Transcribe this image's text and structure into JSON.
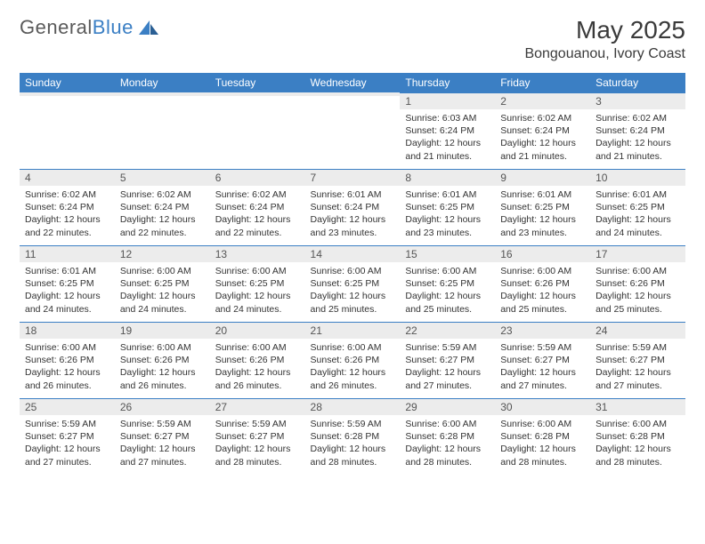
{
  "logo": {
    "text1": "General",
    "text2": "Blue"
  },
  "title": {
    "month": "May 2025",
    "location": "Bongouanou, Ivory Coast"
  },
  "colors": {
    "header_bg": "#3b7fc4",
    "header_text": "#ffffff",
    "daynum_bg": "#ececec",
    "row_border": "#3b7fc4",
    "body_text": "#333333",
    "logo_gray": "#5a5a5a",
    "logo_blue": "#3b7fc4",
    "page_bg": "#ffffff"
  },
  "dayHeaders": [
    "Sunday",
    "Monday",
    "Tuesday",
    "Wednesday",
    "Thursday",
    "Friday",
    "Saturday"
  ],
  "weeks": [
    [
      {
        "n": "",
        "sr": "",
        "ss": "",
        "dl": ""
      },
      {
        "n": "",
        "sr": "",
        "ss": "",
        "dl": ""
      },
      {
        "n": "",
        "sr": "",
        "ss": "",
        "dl": ""
      },
      {
        "n": "",
        "sr": "",
        "ss": "",
        "dl": ""
      },
      {
        "n": "1",
        "sr": "Sunrise: 6:03 AM",
        "ss": "Sunset: 6:24 PM",
        "dl": "Daylight: 12 hours and 21 minutes."
      },
      {
        "n": "2",
        "sr": "Sunrise: 6:02 AM",
        "ss": "Sunset: 6:24 PM",
        "dl": "Daylight: 12 hours and 21 minutes."
      },
      {
        "n": "3",
        "sr": "Sunrise: 6:02 AM",
        "ss": "Sunset: 6:24 PM",
        "dl": "Daylight: 12 hours and 21 minutes."
      }
    ],
    [
      {
        "n": "4",
        "sr": "Sunrise: 6:02 AM",
        "ss": "Sunset: 6:24 PM",
        "dl": "Daylight: 12 hours and 22 minutes."
      },
      {
        "n": "5",
        "sr": "Sunrise: 6:02 AM",
        "ss": "Sunset: 6:24 PM",
        "dl": "Daylight: 12 hours and 22 minutes."
      },
      {
        "n": "6",
        "sr": "Sunrise: 6:02 AM",
        "ss": "Sunset: 6:24 PM",
        "dl": "Daylight: 12 hours and 22 minutes."
      },
      {
        "n": "7",
        "sr": "Sunrise: 6:01 AM",
        "ss": "Sunset: 6:24 PM",
        "dl": "Daylight: 12 hours and 23 minutes."
      },
      {
        "n": "8",
        "sr": "Sunrise: 6:01 AM",
        "ss": "Sunset: 6:25 PM",
        "dl": "Daylight: 12 hours and 23 minutes."
      },
      {
        "n": "9",
        "sr": "Sunrise: 6:01 AM",
        "ss": "Sunset: 6:25 PM",
        "dl": "Daylight: 12 hours and 23 minutes."
      },
      {
        "n": "10",
        "sr": "Sunrise: 6:01 AM",
        "ss": "Sunset: 6:25 PM",
        "dl": "Daylight: 12 hours and 24 minutes."
      }
    ],
    [
      {
        "n": "11",
        "sr": "Sunrise: 6:01 AM",
        "ss": "Sunset: 6:25 PM",
        "dl": "Daylight: 12 hours and 24 minutes."
      },
      {
        "n": "12",
        "sr": "Sunrise: 6:00 AM",
        "ss": "Sunset: 6:25 PM",
        "dl": "Daylight: 12 hours and 24 minutes."
      },
      {
        "n": "13",
        "sr": "Sunrise: 6:00 AM",
        "ss": "Sunset: 6:25 PM",
        "dl": "Daylight: 12 hours and 24 minutes."
      },
      {
        "n": "14",
        "sr": "Sunrise: 6:00 AM",
        "ss": "Sunset: 6:25 PM",
        "dl": "Daylight: 12 hours and 25 minutes."
      },
      {
        "n": "15",
        "sr": "Sunrise: 6:00 AM",
        "ss": "Sunset: 6:25 PM",
        "dl": "Daylight: 12 hours and 25 minutes."
      },
      {
        "n": "16",
        "sr": "Sunrise: 6:00 AM",
        "ss": "Sunset: 6:26 PM",
        "dl": "Daylight: 12 hours and 25 minutes."
      },
      {
        "n": "17",
        "sr": "Sunrise: 6:00 AM",
        "ss": "Sunset: 6:26 PM",
        "dl": "Daylight: 12 hours and 25 minutes."
      }
    ],
    [
      {
        "n": "18",
        "sr": "Sunrise: 6:00 AM",
        "ss": "Sunset: 6:26 PM",
        "dl": "Daylight: 12 hours and 26 minutes."
      },
      {
        "n": "19",
        "sr": "Sunrise: 6:00 AM",
        "ss": "Sunset: 6:26 PM",
        "dl": "Daylight: 12 hours and 26 minutes."
      },
      {
        "n": "20",
        "sr": "Sunrise: 6:00 AM",
        "ss": "Sunset: 6:26 PM",
        "dl": "Daylight: 12 hours and 26 minutes."
      },
      {
        "n": "21",
        "sr": "Sunrise: 6:00 AM",
        "ss": "Sunset: 6:26 PM",
        "dl": "Daylight: 12 hours and 26 minutes."
      },
      {
        "n": "22",
        "sr": "Sunrise: 5:59 AM",
        "ss": "Sunset: 6:27 PM",
        "dl": "Daylight: 12 hours and 27 minutes."
      },
      {
        "n": "23",
        "sr": "Sunrise: 5:59 AM",
        "ss": "Sunset: 6:27 PM",
        "dl": "Daylight: 12 hours and 27 minutes."
      },
      {
        "n": "24",
        "sr": "Sunrise: 5:59 AM",
        "ss": "Sunset: 6:27 PM",
        "dl": "Daylight: 12 hours and 27 minutes."
      }
    ],
    [
      {
        "n": "25",
        "sr": "Sunrise: 5:59 AM",
        "ss": "Sunset: 6:27 PM",
        "dl": "Daylight: 12 hours and 27 minutes."
      },
      {
        "n": "26",
        "sr": "Sunrise: 5:59 AM",
        "ss": "Sunset: 6:27 PM",
        "dl": "Daylight: 12 hours and 27 minutes."
      },
      {
        "n": "27",
        "sr": "Sunrise: 5:59 AM",
        "ss": "Sunset: 6:27 PM",
        "dl": "Daylight: 12 hours and 28 minutes."
      },
      {
        "n": "28",
        "sr": "Sunrise: 5:59 AM",
        "ss": "Sunset: 6:28 PM",
        "dl": "Daylight: 12 hours and 28 minutes."
      },
      {
        "n": "29",
        "sr": "Sunrise: 6:00 AM",
        "ss": "Sunset: 6:28 PM",
        "dl": "Daylight: 12 hours and 28 minutes."
      },
      {
        "n": "30",
        "sr": "Sunrise: 6:00 AM",
        "ss": "Sunset: 6:28 PM",
        "dl": "Daylight: 12 hours and 28 minutes."
      },
      {
        "n": "31",
        "sr": "Sunrise: 6:00 AM",
        "ss": "Sunset: 6:28 PM",
        "dl": "Daylight: 12 hours and 28 minutes."
      }
    ]
  ]
}
